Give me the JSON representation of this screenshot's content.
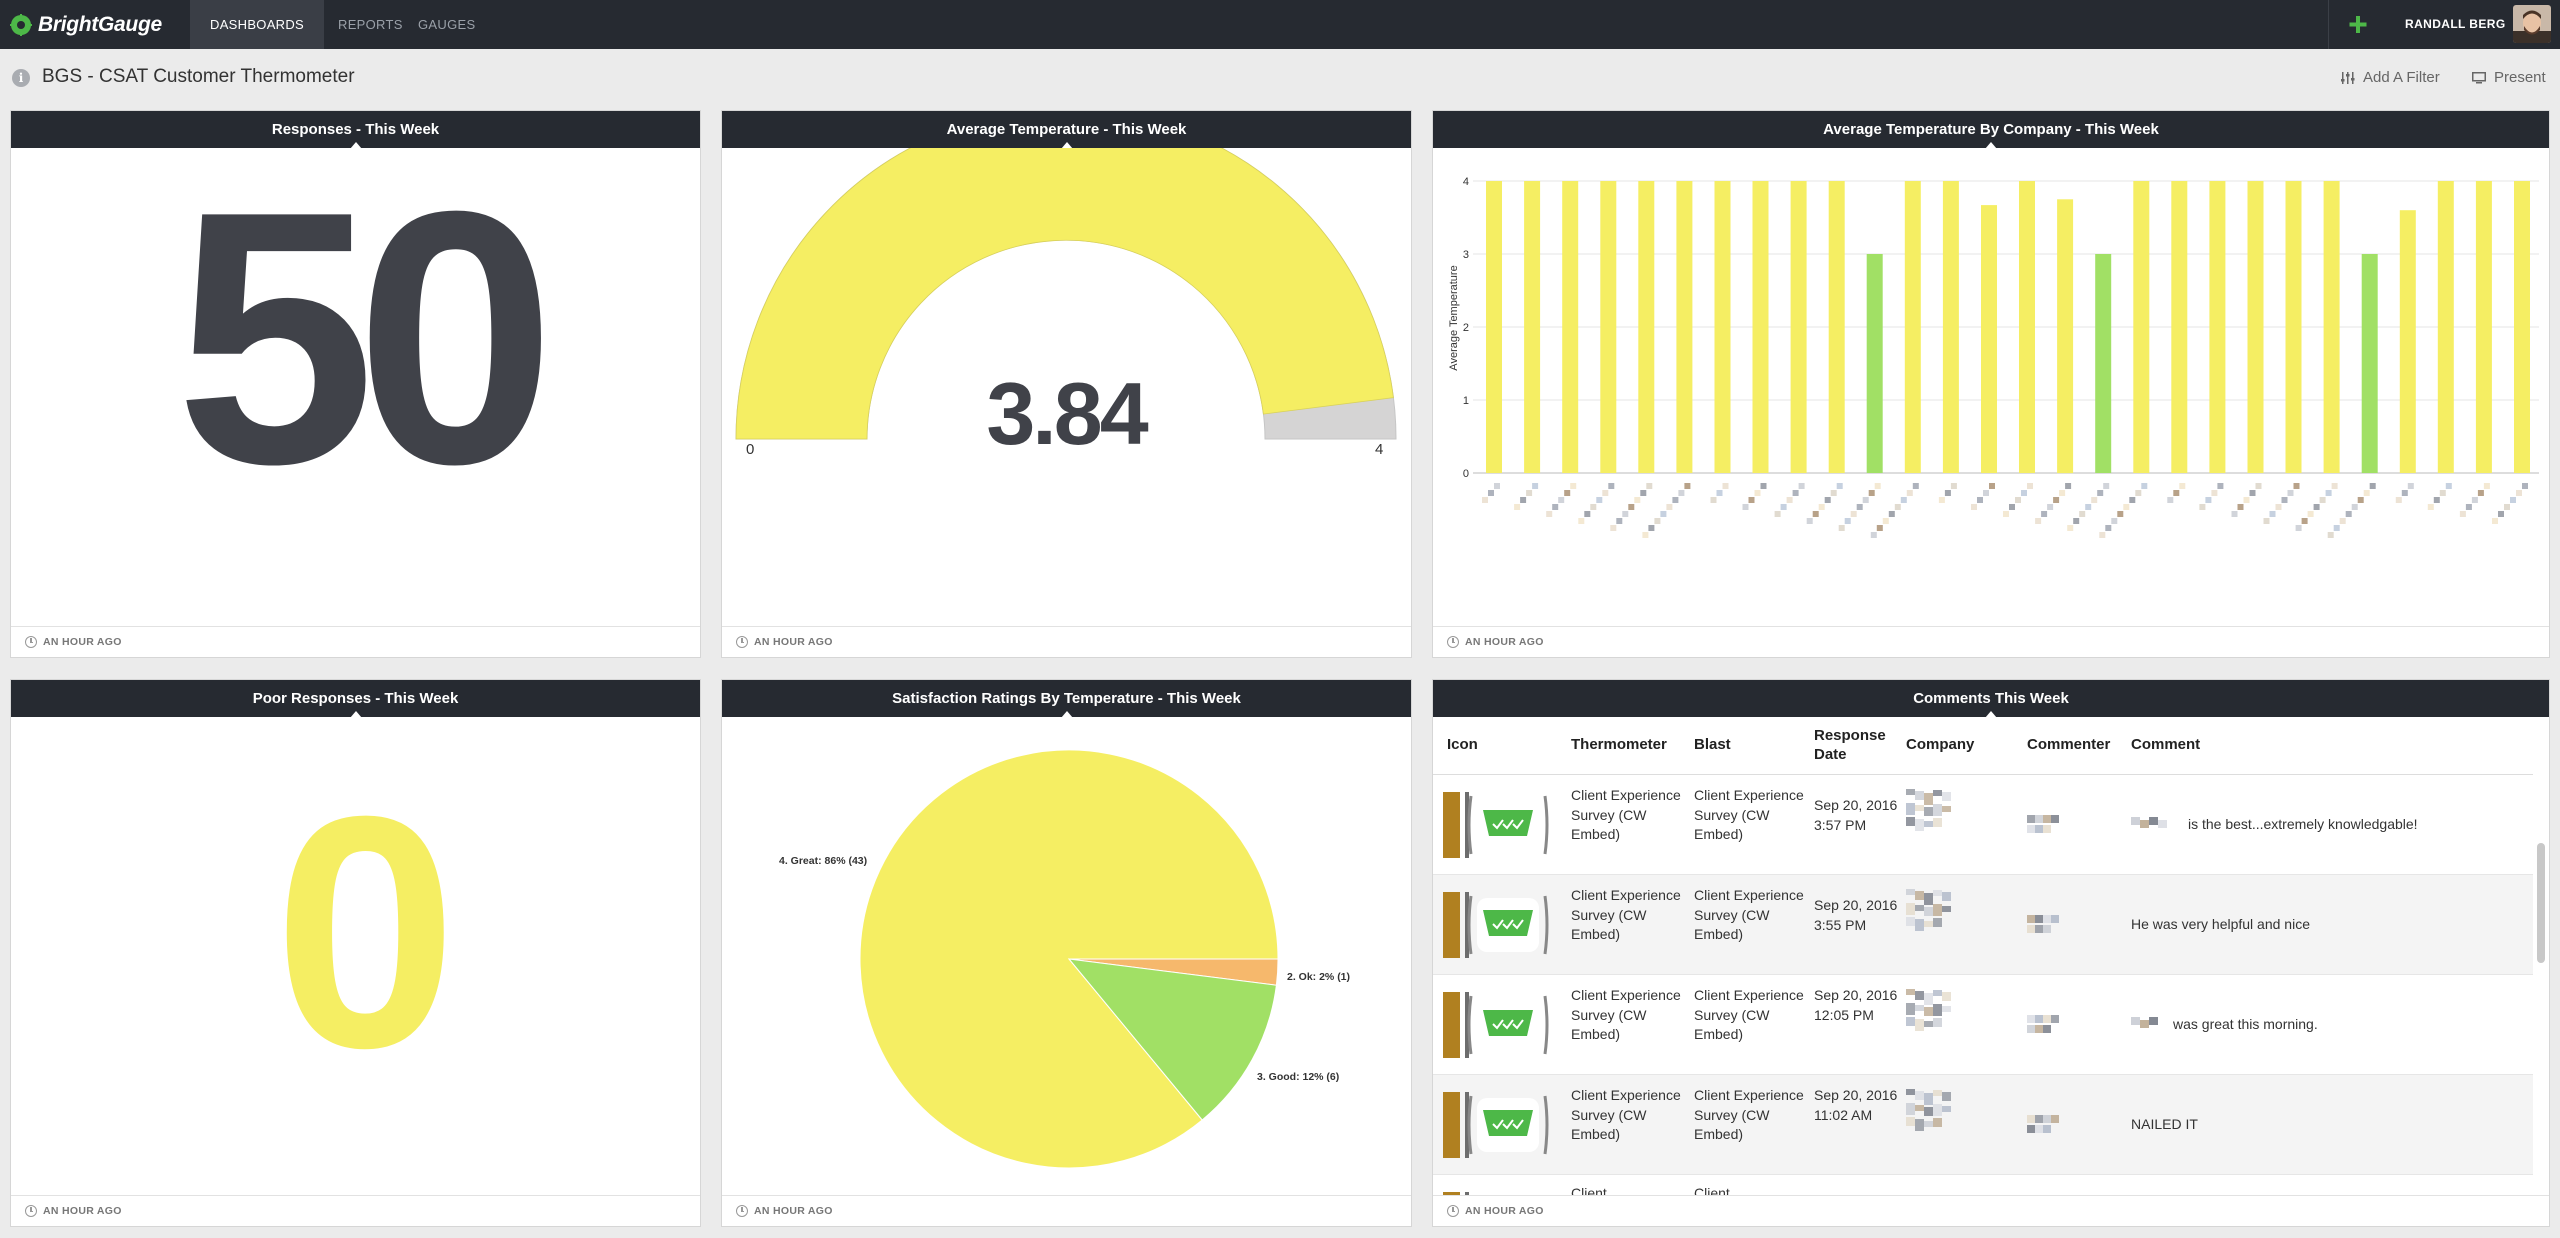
{
  "app": {
    "brand": "BrightGauge",
    "nav": [
      "DASHBOARDS",
      "REPORTS",
      "GAUGES"
    ],
    "user_name": "RANDALL BERG",
    "accent_green": "#4db848",
    "nav_bg": "#262a31"
  },
  "dashboard": {
    "title": "BGS - CSAT Customer Thermometer",
    "add_filter": "Add A Filter",
    "present": "Present"
  },
  "widgets": {
    "responses": {
      "title": "Responses - This Week",
      "value": "50",
      "updated": "AN HOUR AGO",
      "color": "#404249"
    },
    "avg_temp": {
      "title": "Average Temperature - This Week",
      "value": "3.84",
      "min": "0",
      "max": "4",
      "updated": "AN HOUR AGO",
      "fill_color": "#f5ee63",
      "empty_color": "#d5d4d4"
    },
    "by_company": {
      "title": "Average Temperature By Company - This Week",
      "ylabel": "Average Temperature",
      "updated": "AN HOUR AGO"
    },
    "poor": {
      "title": "Poor Responses - This Week",
      "value": "0",
      "updated": "AN HOUR AGO",
      "color": "#f5ee63"
    },
    "ratings": {
      "title": "Satisfaction Ratings By Temperature - This Week",
      "updated": "AN HOUR AGO"
    },
    "comments": {
      "title": "Comments This Week",
      "updated": "AN HOUR AGO",
      "columns": [
        "Icon",
        "Thermometer",
        "Blast",
        "Response Date",
        "Company",
        "Commenter",
        "Comment"
      ],
      "rows": [
        {
          "thermometer": "Client Experience Survey (CW Embed)",
          "blast": "Client Experience Survey (CW Embed)",
          "date": "Sep 20, 2016 3:57 PM",
          "comment": "is the best...extremely knowledgable!"
        },
        {
          "thermometer": "Client Experience Survey (CW Embed)",
          "blast": "Client Experience Survey (CW Embed)",
          "date": "Sep 20, 2016 3:55 PM",
          "comment": "He was very helpful and nice"
        },
        {
          "thermometer": "Client Experience Survey (CW Embed)",
          "blast": "Client Experience Survey (CW Embed)",
          "date": "Sep 20, 2016 12:05 PM",
          "comment": "was great this morning."
        },
        {
          "thermometer": "Client Experience Survey (CW Embed)",
          "blast": "Client Experience Survey (CW Embed)",
          "date": "Sep 20, 2016 11:02 AM",
          "comment": "NAILED IT"
        },
        {
          "thermometer": "Client",
          "blast": "Client",
          "date": "",
          "comment": ""
        }
      ]
    }
  },
  "chart_data": [
    {
      "type": "bar",
      "ylabel": "Average Temperature",
      "ylim": [
        0,
        4
      ],
      "yticks": [
        0,
        1,
        2,
        3,
        4
      ],
      "grid": true,
      "values": [
        4,
        4,
        4,
        4,
        4,
        4,
        4,
        4,
        4,
        4,
        3,
        4,
        4,
        3.67,
        4,
        3.75,
        3,
        4,
        4,
        4,
        4,
        4,
        4,
        3,
        3.6,
        4,
        4,
        4
      ],
      "colors": {
        "default": "#f5ee63",
        "low": "#a1e065"
      }
    },
    {
      "type": "pie",
      "slices": [
        {
          "label": "4. Great: 86% (43)",
          "value": 43,
          "color": "#f5ee63"
        },
        {
          "label": "2. Ok: 2% (1)",
          "value": 1,
          "color": "#f6b86c"
        },
        {
          "label": "3. Good: 12% (6)",
          "value": 6,
          "color": "#a1e065"
        }
      ]
    }
  ]
}
